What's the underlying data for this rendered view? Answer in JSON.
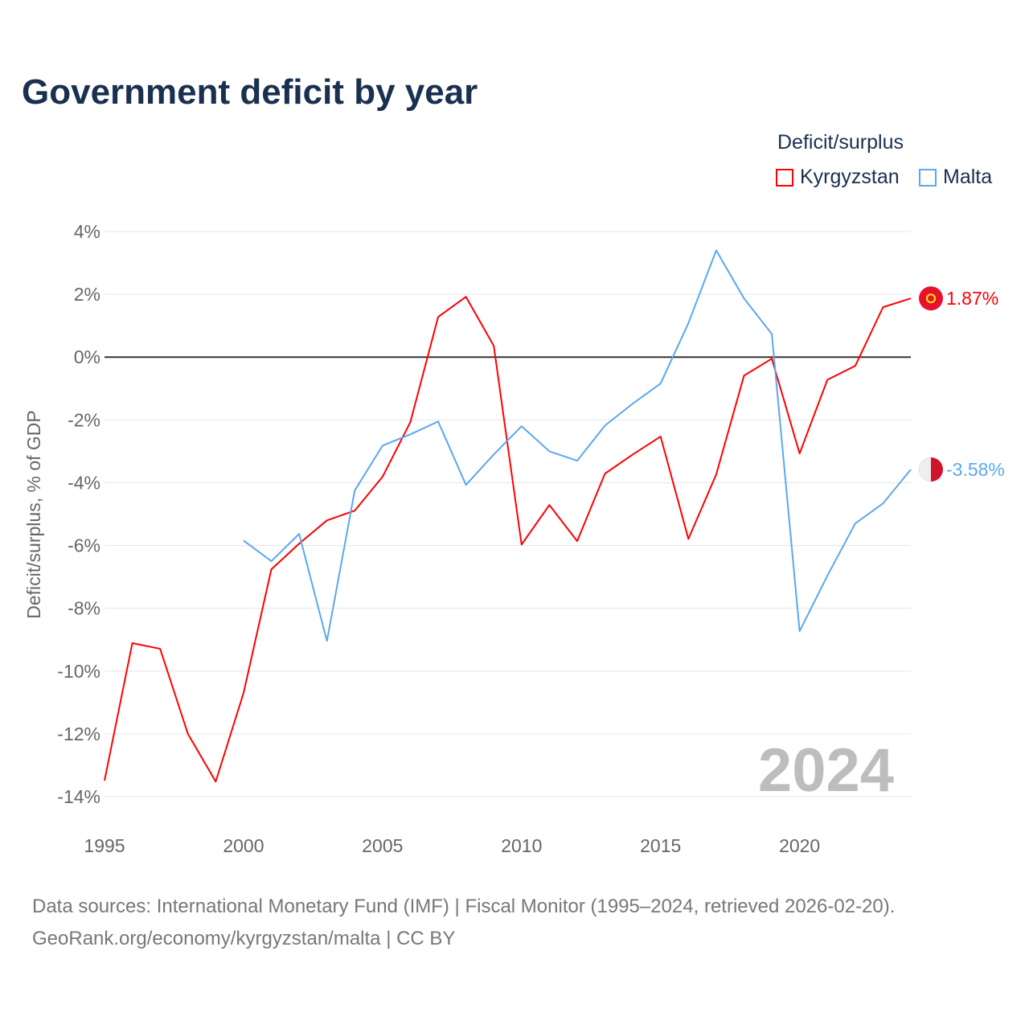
{
  "title": "Government deficit by year",
  "legend_title": "Deficit/surplus",
  "source_line1": "Data sources: International Monetary Fund (IMF) | Fiscal Monitor (1995–2024, retrieved 2026-02-20).",
  "source_line2": "GeoRank.org/economy/kyrgyzstan/malta | CC BY",
  "chart_data": {
    "type": "line",
    "title": "Government deficit by year",
    "ylabel": "Deficit/surplus, % of GDP",
    "xlabel": "",
    "ylim": [
      -14,
      4
    ],
    "xlim": [
      1995,
      2024
    ],
    "yticks": [
      4,
      2,
      0,
      -2,
      -4,
      -6,
      -8,
      -10,
      -12,
      -14
    ],
    "ytick_labels": [
      "4%",
      "2%",
      "0%",
      "-2%",
      "-4%",
      "-6%",
      "-8%",
      "-10%",
      "-12%",
      "-14%"
    ],
    "xticks": [
      1995,
      2000,
      2005,
      2010,
      2015,
      2020
    ],
    "xtick_labels": [
      "1995",
      "2000",
      "2005",
      "2010",
      "2015",
      "2020"
    ],
    "year_watermark": "2024",
    "grid": true,
    "legend_placement": "top-right",
    "series": [
      {
        "name": "Kyrgyzstan",
        "color": "#ff0000",
        "end_label": "1.87%",
        "x": [
          1995,
          1996,
          1997,
          1998,
          1999,
          2000,
          2001,
          2002,
          2003,
          2004,
          2005,
          2006,
          2007,
          2008,
          2009,
          2010,
          2011,
          2012,
          2013,
          2014,
          2015,
          2016,
          2017,
          2018,
          2019,
          2020,
          2021,
          2022,
          2023,
          2024
        ],
        "values": [
          -13.49,
          -9.11,
          -9.29,
          -12.0,
          -13.52,
          -10.7,
          -6.76,
          -5.94,
          -5.2,
          -4.89,
          -3.81,
          -2.07,
          1.28,
          1.92,
          0.36,
          -5.97,
          -4.71,
          -5.86,
          -3.71,
          -3.1,
          -2.53,
          -5.79,
          -3.74,
          -0.59,
          -0.05,
          -3.07,
          -0.72,
          -0.28,
          1.59,
          1.87
        ]
      },
      {
        "name": "Malta",
        "color": "#5ba8f0",
        "end_label": "-3.58%",
        "x": [
          2000,
          2001,
          2002,
          2003,
          2004,
          2005,
          2006,
          2007,
          2008,
          2009,
          2010,
          2011,
          2012,
          2013,
          2014,
          2015,
          2016,
          2017,
          2018,
          2019,
          2020,
          2021,
          2022,
          2023,
          2024
        ],
        "values": [
          -5.84,
          -6.5,
          -5.63,
          -9.04,
          -4.25,
          -2.82,
          -2.46,
          -2.05,
          -4.07,
          -3.1,
          -2.2,
          -3.0,
          -3.3,
          -2.18,
          -1.48,
          -0.84,
          1.08,
          3.4,
          1.87,
          0.74,
          -8.73,
          -6.96,
          -5.3,
          -4.66,
          -3.58
        ]
      }
    ]
  }
}
